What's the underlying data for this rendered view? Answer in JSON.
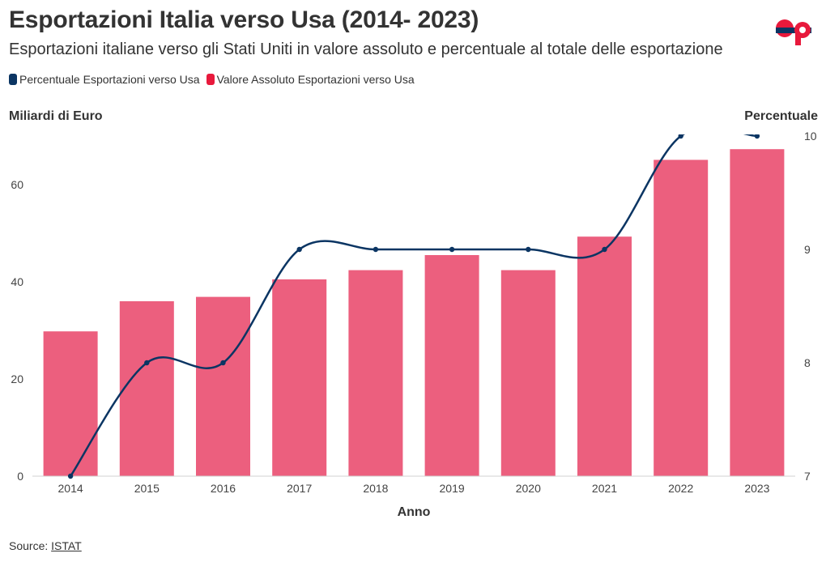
{
  "header": {
    "title": "Esportazioni Italia verso Usa (2014- 2023)",
    "subtitle": "Esportazioni italiane verso gli Stati Uniti in valore assoluto e percentuale al totale delle esportazione",
    "logo_text": "OP"
  },
  "legend": {
    "items": [
      {
        "label": "Percentuale Esportazioni verso Usa",
        "color": "#0b3563"
      },
      {
        "label": "Valore Assoluto Esportazioni verso Usa",
        "color": "#e8193c"
      }
    ]
  },
  "footer": {
    "source_prefix": "Source: ",
    "source_link": "ISTAT"
  },
  "chart_data": {
    "type": "bar+line",
    "title": "Esportazioni Italia verso Usa (2014- 2023)",
    "xlabel": "Anno",
    "ylabel_left": "Miliardi di Euro",
    "ylabel_right": "Percentuale",
    "categories": [
      "2014",
      "2015",
      "2016",
      "2017",
      "2018",
      "2019",
      "2020",
      "2021",
      "2022",
      "2023"
    ],
    "ylim_left": [
      0,
      70
    ],
    "ylim_right": [
      7,
      10
    ],
    "yticks_left": [
      0,
      20,
      40,
      60
    ],
    "yticks_right": [
      7,
      8,
      9,
      10
    ],
    "series": [
      {
        "name": "Valore Assoluto Esportazioni verso Usa",
        "type": "bar",
        "axis": "left",
        "color": "#ec5f7e",
        "values": [
          29.8,
          36.0,
          36.9,
          40.5,
          42.4,
          45.5,
          42.4,
          49.3,
          65.1,
          67.3
        ]
      },
      {
        "name": "Percentuale Esportazioni verso Usa",
        "type": "line",
        "axis": "right",
        "color": "#0b3563",
        "values": [
          7.0,
          8.0,
          8.0,
          9.0,
          9.0,
          9.0,
          9.0,
          9.0,
          10.0,
          10.0
        ]
      }
    ]
  }
}
